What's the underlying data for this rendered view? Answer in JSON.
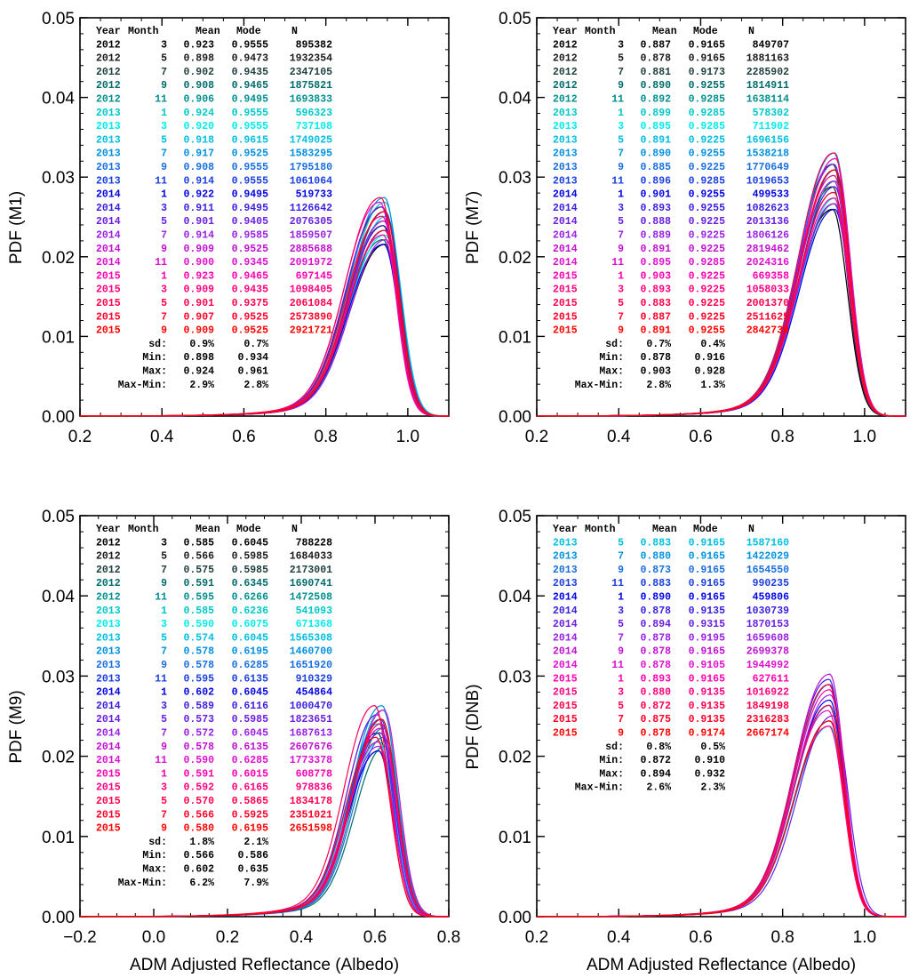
{
  "chart_data": [
    {
      "type": "line",
      "panel": "top-left",
      "title": "",
      "ylabel": "PDF (M1)",
      "xlabel": "",
      "xlim": [
        0.2,
        1.1
      ],
      "ylim": [
        0,
        0.05
      ],
      "xticks": [
        "0.2",
        "0.4",
        "0.6",
        "0.8",
        "1.0"
      ],
      "yticks": [
        "0.00",
        "0.01",
        "0.02",
        "0.03",
        "0.04",
        "0.05"
      ],
      "curve_center": 0.945,
      "curve_peak": 0.0245,
      "table": {
        "header": [
          "Year",
          "Month",
          "Mean",
          "Mode",
          "N"
        ],
        "rows": [
          [
            "2012",
            "3",
            "0.923",
            "0.9555",
            "895382"
          ],
          [
            "2012",
            "5",
            "0.898",
            "0.9473",
            "1932354"
          ],
          [
            "2012",
            "7",
            "0.902",
            "0.9435",
            "2347105"
          ],
          [
            "2012",
            "9",
            "0.908",
            "0.9465",
            "1875821"
          ],
          [
            "2012",
            "11",
            "0.906",
            "0.9495",
            "1693833"
          ],
          [
            "2013",
            "1",
            "0.924",
            "0.9555",
            "596323"
          ],
          [
            "2013",
            "3",
            "0.920",
            "0.9555",
            "737108"
          ],
          [
            "2013",
            "5",
            "0.918",
            "0.9615",
            "1749025"
          ],
          [
            "2013",
            "7",
            "0.917",
            "0.9525",
            "1583295"
          ],
          [
            "2013",
            "9",
            "0.908",
            "0.9555",
            "1795180"
          ],
          [
            "2013",
            "11",
            "0.914",
            "0.9555",
            "1061064"
          ],
          [
            "2014",
            "1",
            "0.922",
            "0.9495",
            "519733"
          ],
          [
            "2014",
            "3",
            "0.911",
            "0.9495",
            "1126642"
          ],
          [
            "2014",
            "5",
            "0.901",
            "0.9405",
            "2076305"
          ],
          [
            "2014",
            "7",
            "0.914",
            "0.9585",
            "1859507"
          ],
          [
            "2014",
            "9",
            "0.909",
            "0.9525",
            "2885688"
          ],
          [
            "2014",
            "11",
            "0.900",
            "0.9345",
            "2091972"
          ],
          [
            "2015",
            "1",
            "0.923",
            "0.9465",
            "697145"
          ],
          [
            "2015",
            "3",
            "0.909",
            "0.9435",
            "1098405"
          ],
          [
            "2015",
            "5",
            "0.901",
            "0.9375",
            "2061084"
          ],
          [
            "2015",
            "7",
            "0.907",
            "0.9525",
            "2573890"
          ],
          [
            "2015",
            "9",
            "0.909",
            "0.9525",
            "2921721"
          ]
        ],
        "stats": [
          [
            "sd:",
            "0.9%",
            "0.7%"
          ],
          [
            "Min:",
            "0.898",
            "0.934"
          ],
          [
            "Max:",
            "0.924",
            "0.961"
          ],
          [
            "Max-Min:",
            "2.9%",
            "2.8%"
          ]
        ]
      }
    },
    {
      "type": "line",
      "panel": "top-right",
      "title": "",
      "ylabel": "PDF (M7)",
      "xlabel": "",
      "xlim": [
        0.2,
        1.1
      ],
      "ylim": [
        0,
        0.05
      ],
      "xticks": [
        "0.2",
        "0.4",
        "0.6",
        "0.8",
        "1.0"
      ],
      "yticks": [
        "0.00",
        "0.01",
        "0.02",
        "0.03",
        "0.04",
        "0.05"
      ],
      "curve_center": 0.922,
      "curve_peak": 0.0295,
      "table": {
        "header": [
          "Year",
          "Month",
          "Mean",
          "Mode",
          "N"
        ],
        "rows": [
          [
            "2012",
            "3",
            "0.887",
            "0.9165",
            "849707"
          ],
          [
            "2012",
            "5",
            "0.878",
            "0.9165",
            "1881163"
          ],
          [
            "2012",
            "7",
            "0.881",
            "0.9173",
            "2285902"
          ],
          [
            "2012",
            "9",
            "0.890",
            "0.9255",
            "1814911"
          ],
          [
            "2012",
            "11",
            "0.892",
            "0.9285",
            "1638114"
          ],
          [
            "2013",
            "1",
            "0.899",
            "0.9285",
            "578302"
          ],
          [
            "2013",
            "3",
            "0.895",
            "0.9285",
            "711902"
          ],
          [
            "2013",
            "5",
            "0.891",
            "0.9225",
            "1696156"
          ],
          [
            "2013",
            "7",
            "0.890",
            "0.9255",
            "1538218"
          ],
          [
            "2013",
            "9",
            "0.885",
            "0.9225",
            "1770649"
          ],
          [
            "2013",
            "11",
            "0.896",
            "0.9285",
            "1019653"
          ],
          [
            "2014",
            "1",
            "0.901",
            "0.9255",
            "499533"
          ],
          [
            "2014",
            "3",
            "0.893",
            "0.9255",
            "1082623"
          ],
          [
            "2014",
            "5",
            "0.888",
            "0.9225",
            "2013136"
          ],
          [
            "2014",
            "7",
            "0.889",
            "0.9225",
            "1806126"
          ],
          [
            "2014",
            "9",
            "0.891",
            "0.9225",
            "2819462"
          ],
          [
            "2014",
            "11",
            "0.895",
            "0.9285",
            "2024316"
          ],
          [
            "2015",
            "1",
            "0.903",
            "0.9225",
            "669358"
          ],
          [
            "2015",
            "3",
            "0.893",
            "0.9225",
            "1058033"
          ],
          [
            "2015",
            "5",
            "0.883",
            "0.9225",
            "2001370"
          ],
          [
            "2015",
            "7",
            "0.887",
            "0.9225",
            "2511625"
          ],
          [
            "2015",
            "9",
            "0.891",
            "0.9255",
            "2842730"
          ]
        ],
        "stats": [
          [
            "sd:",
            "0.7%",
            "0.4%"
          ],
          [
            "Min:",
            "0.878",
            "0.916"
          ],
          [
            "Max:",
            "0.903",
            "0.928"
          ],
          [
            "Max-Min:",
            "2.8%",
            "1.3%"
          ]
        ]
      }
    },
    {
      "type": "line",
      "panel": "bottom-left",
      "title": "",
      "ylabel": "PDF (M9)",
      "xlabel": "ADM Adjusted Reflectance (Albedo)",
      "xlim": [
        -0.2,
        0.8
      ],
      "ylim": [
        0,
        0.05
      ],
      "xticks": [
        "−0.2",
        "0.0",
        "0.2",
        "0.4",
        "0.6",
        "0.8"
      ],
      "yticks": [
        "0.00",
        "0.01",
        "0.02",
        "0.03",
        "0.04",
        "0.05"
      ],
      "curve_center": 0.61,
      "curve_peak": 0.0235,
      "table": {
        "header": [
          "Year",
          "Month",
          "Mean",
          "Mode",
          "N"
        ],
        "rows": [
          [
            "2012",
            "3",
            "0.585",
            "0.6045",
            "788228"
          ],
          [
            "2012",
            "5",
            "0.566",
            "0.5985",
            "1684033"
          ],
          [
            "2012",
            "7",
            "0.575",
            "0.5985",
            "2173001"
          ],
          [
            "2012",
            "9",
            "0.591",
            "0.6345",
            "1690741"
          ],
          [
            "2012",
            "11",
            "0.595",
            "0.6266",
            "1472508"
          ],
          [
            "2013",
            "1",
            "0.585",
            "0.6236",
            "541093"
          ],
          [
            "2013",
            "3",
            "0.590",
            "0.6075",
            "671368"
          ],
          [
            "2013",
            "5",
            "0.574",
            "0.6045",
            "1565308"
          ],
          [
            "2013",
            "7",
            "0.578",
            "0.6195",
            "1460700"
          ],
          [
            "2013",
            "9",
            "0.578",
            "0.6285",
            "1651920"
          ],
          [
            "2013",
            "11",
            "0.595",
            "0.6135",
            "910329"
          ],
          [
            "2014",
            "1",
            "0.602",
            "0.6045",
            "454864"
          ],
          [
            "2014",
            "3",
            "0.589",
            "0.6116",
            "1000470"
          ],
          [
            "2014",
            "5",
            "0.573",
            "0.5985",
            "1823651"
          ],
          [
            "2014",
            "7",
            "0.572",
            "0.6045",
            "1687613"
          ],
          [
            "2014",
            "9",
            "0.578",
            "0.6135",
            "2607676"
          ],
          [
            "2014",
            "11",
            "0.590",
            "0.6285",
            "1773378"
          ],
          [
            "2015",
            "1",
            "0.591",
            "0.6015",
            "608778"
          ],
          [
            "2015",
            "3",
            "0.592",
            "0.6165",
            "978836"
          ],
          [
            "2015",
            "5",
            "0.570",
            "0.5865",
            "1834178"
          ],
          [
            "2015",
            "7",
            "0.566",
            "0.5925",
            "2351021"
          ],
          [
            "2015",
            "9",
            "0.580",
            "0.6195",
            "2651598"
          ]
        ],
        "stats": [
          [
            "sd:",
            "1.8%",
            "2.1%"
          ],
          [
            "Min:",
            "0.566",
            "0.586"
          ],
          [
            "Max:",
            "0.602",
            "0.635"
          ],
          [
            "Max-Min:",
            "6.2%",
            "7.9%"
          ]
        ]
      }
    },
    {
      "type": "line",
      "panel": "bottom-right",
      "title": "",
      "ylabel": "PDF (DNB)",
      "xlabel": "ADM Adjusted Reflectance (Albedo)",
      "xlim": [
        0.2,
        1.1
      ],
      "ylim": [
        0,
        0.05
      ],
      "xticks": [
        "0.2",
        "0.4",
        "0.6",
        "0.8",
        "1.0"
      ],
      "yticks": [
        "0.00",
        "0.01",
        "0.02",
        "0.03",
        "0.04",
        "0.05"
      ],
      "curve_center": 0.915,
      "curve_peak": 0.027,
      "table": {
        "header": [
          "Year",
          "Month",
          "Mean",
          "Mode",
          "N"
        ],
        "rows": [
          [
            "2013",
            "5",
            "0.883",
            "0.9165",
            "1587160"
          ],
          [
            "2013",
            "7",
            "0.880",
            "0.9165",
            "1422029"
          ],
          [
            "2013",
            "9",
            "0.873",
            "0.9165",
            "1654550"
          ],
          [
            "2013",
            "11",
            "0.883",
            "0.9165",
            "990235"
          ],
          [
            "2014",
            "1",
            "0.890",
            "0.9165",
            "459806"
          ],
          [
            "2014",
            "3",
            "0.878",
            "0.9135",
            "1030739"
          ],
          [
            "2014",
            "5",
            "0.894",
            "0.9315",
            "1870153"
          ],
          [
            "2014",
            "7",
            "0.878",
            "0.9195",
            "1659608"
          ],
          [
            "2014",
            "9",
            "0.878",
            "0.9165",
            "2699378"
          ],
          [
            "2014",
            "11",
            "0.878",
            "0.9105",
            "1944992"
          ],
          [
            "2015",
            "1",
            "0.893",
            "0.9165",
            "627611"
          ],
          [
            "2015",
            "3",
            "0.880",
            "0.9135",
            "1016922"
          ],
          [
            "2015",
            "5",
            "0.872",
            "0.9135",
            "1849198"
          ],
          [
            "2015",
            "7",
            "0.875",
            "0.9135",
            "2316283"
          ],
          [
            "2015",
            "9",
            "0.878",
            "0.9174",
            "2667174"
          ]
        ],
        "stats": [
          [
            "sd:",
            "0.8%",
            "0.5%"
          ],
          [
            "Min:",
            "0.872",
            "0.910"
          ],
          [
            "Max:",
            "0.894",
            "0.932"
          ],
          [
            "Max-Min:",
            "2.6%",
            "2.3%"
          ]
        ]
      }
    }
  ],
  "series_colors": {
    "2012-3": "#000000",
    "2012-5": "#1a1a1a",
    "2012-7": "#1f3f3f",
    "2012-9": "#006b6b",
    "2012-11": "#008f8f",
    "2013-1": "#00c8c8",
    "2013-3": "#00ecec",
    "2013-5": "#00bfe0",
    "2013-7": "#0090e0",
    "2013-9": "#1a6fe0",
    "2013-11": "#1a3fe0",
    "2014-1": "#0000e6",
    "2014-3": "#3a1fe0",
    "2014-5": "#6a1fe0",
    "2014-7": "#9a1fe6",
    "2014-9": "#c010d0",
    "2014-11": "#e010d0",
    "2015-1": "#ff00b0",
    "2015-3": "#ff0080",
    "2015-5": "#ff0050",
    "2015-7": "#ff0028",
    "2015-9": "#ff0000"
  }
}
